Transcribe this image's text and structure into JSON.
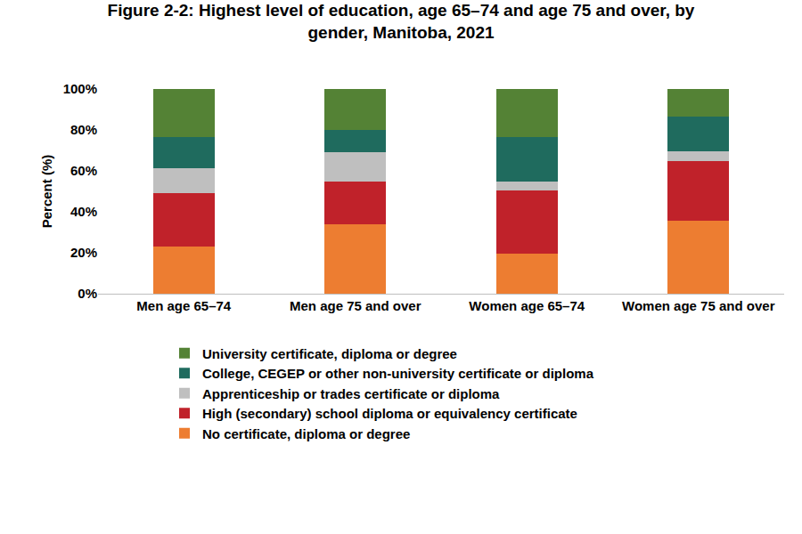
{
  "chart_data": {
    "type": "bar",
    "stacked": true,
    "title": "Figure 2-2: Highest level of education, age 65–74 and age 75 and over, by gender, Manitoba, 2021",
    "y_label": "Percent (%)",
    "categories": [
      "Men age 65–74",
      "Men age 75 and over",
      "Women age 65–74",
      "Women age 75 and over"
    ],
    "series": [
      {
        "name": "No certificate, diploma or degree",
        "color": "#ed7d31",
        "values": [
          23,
          34,
          19.5,
          35.5
        ]
      },
      {
        "name": "High (secondary) school diploma or equivalency certificate",
        "color": "#c0222a",
        "values": [
          26,
          21,
          31,
          29.5
        ]
      },
      {
        "name": "Apprenticeship or trades certificate or diploma",
        "color": "#bfbfbf",
        "values": [
          12.5,
          14,
          4.5,
          4.5
        ]
      },
      {
        "name": "College, CEGEP or other non-university certificate or diploma",
        "color": "#1f6b5e",
        "values": [
          15,
          11,
          21.5,
          17
        ]
      },
      {
        "name": "University certificate, diploma or degree",
        "color": "#548235",
        "values": [
          23.5,
          20,
          23.5,
          13.5
        ]
      }
    ],
    "ylim": [
      0,
      100
    ],
    "yticks": [
      {
        "value": 0,
        "label": "0%"
      },
      {
        "value": 20,
        "label": "20%"
      },
      {
        "value": 40,
        "label": "40%"
      },
      {
        "value": 60,
        "label": "60%"
      },
      {
        "value": 80,
        "label": "80%"
      },
      {
        "value": 100,
        "label": "100%"
      }
    ],
    "grid": false,
    "legend": "bottom"
  }
}
